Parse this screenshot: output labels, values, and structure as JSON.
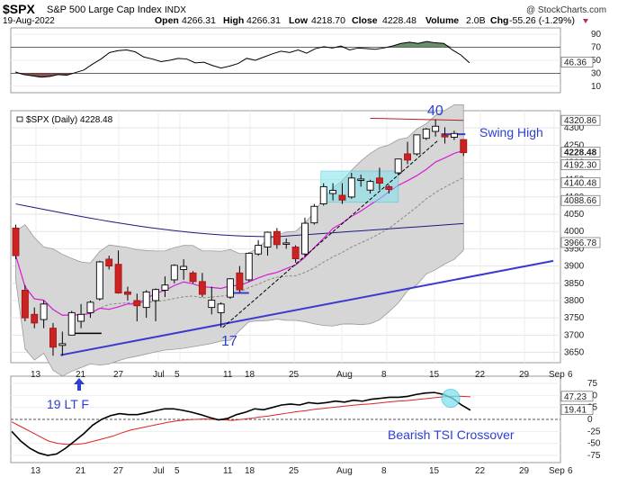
{
  "header": {
    "symbol": "$SPX",
    "name": "S&P 500 Large Cap Index",
    "exchange": "INDX",
    "watermark": "@ StockCharts.com",
    "date": "19-Aug-2022",
    "open_label": "Open",
    "open": "4266.31",
    "high_label": "High",
    "high": "4266.31",
    "low_label": "Low",
    "low": "4218.70",
    "close_label": "Close",
    "close": "4228.48",
    "volume_label": "Volume",
    "volume": "2.0B",
    "chg_label": "Chg",
    "chg": "-55.26 (-1.29%)",
    "legend": "$SPX (Daily) 4228.48"
  },
  "colors": {
    "up_candle": "#ffffff",
    "down_candle": "#cc2222",
    "bollinger_fill": "#d6d6d6",
    "ma_short": "#d81bd8",
    "ma_long": "#1a1a80",
    "upper_envelope": "#b02020",
    "trendline": "#3a3ad0",
    "annotation": "#2b3fd1",
    "rsi_fill_up": "#6a8f6a",
    "rsi_fill_down": "#8a5050",
    "tsi_line": "#000000",
    "tsi_signal": "#dd2222",
    "highlight": "#7fe3ee"
  },
  "annotations": {
    "peak_day": "40",
    "swing_high": "Swing High",
    "low_day": "17",
    "lt_f": "19 LT F",
    "tsi": "Bearish TSI Crossover"
  },
  "chart_data": [
    {
      "type": "line",
      "panel": "RSI",
      "x_tick_labels": [],
      "y_ticks": [
        10,
        30,
        50,
        70,
        90
      ],
      "ylim": [
        0,
        100
      ],
      "value_label": "46.36",
      "values": [
        32,
        28,
        26,
        24,
        25,
        28,
        27,
        31,
        35,
        44,
        52,
        62,
        65,
        66,
        63,
        55,
        52,
        48,
        50,
        53,
        52,
        46,
        47,
        42,
        38,
        41,
        45,
        53,
        50,
        55,
        60,
        64,
        62,
        66,
        61,
        68,
        71,
        69,
        72,
        66,
        69,
        68,
        67,
        69,
        72,
        76,
        78,
        76,
        79,
        77,
        76,
        66,
        58,
        46
      ]
    },
    {
      "type": "candlestick",
      "panel": "Price",
      "title": "$SPX (Daily) 4228.48",
      "x_tick_labels": [
        "13",
        "21",
        "27",
        "Jul",
        "5",
        "11",
        "18",
        "25",
        "Aug",
        "8",
        "15",
        "22",
        "29",
        "Sep",
        "6"
      ],
      "y_ticks": [
        3650,
        3700,
        3750,
        3800,
        3850,
        3900,
        3950,
        4000,
        4050,
        4100,
        4150,
        4200,
        4250,
        4300
      ],
      "ylim": [
        3620,
        4350
      ],
      "price_labels": [
        "4320.86",
        "4228.48",
        "4192.30",
        "4140.48",
        "4088.66",
        "3966.78"
      ],
      "candles": [
        {
          "date": "Jun 10",
          "open": 4010,
          "high": 4020,
          "low": 3920,
          "close": 3930
        },
        {
          "date": "Jun 13",
          "open": 3830,
          "high": 3845,
          "low": 3740,
          "close": 3750
        },
        {
          "date": "Jun 14",
          "open": 3760,
          "high": 3780,
          "low": 3720,
          "close": 3735
        },
        {
          "date": "Jun 15",
          "open": 3745,
          "high": 3800,
          "low": 3720,
          "close": 3790
        },
        {
          "date": "Jun 16",
          "open": 3720,
          "high": 3735,
          "low": 3640,
          "close": 3665
        },
        {
          "date": "Jun 17",
          "open": 3670,
          "high": 3710,
          "low": 3640,
          "close": 3675
        },
        {
          "date": "Jun 21",
          "open": 3700,
          "high": 3770,
          "low": 3700,
          "close": 3765
        },
        {
          "date": "Jun 22",
          "open": 3740,
          "high": 3790,
          "low": 3720,
          "close": 3760
        },
        {
          "date": "Jun 23",
          "open": 3765,
          "high": 3800,
          "low": 3750,
          "close": 3795
        },
        {
          "date": "Jun 24",
          "open": 3805,
          "high": 3915,
          "low": 3800,
          "close": 3912
        },
        {
          "date": "Jun 27",
          "open": 3920,
          "high": 3930,
          "low": 3890,
          "close": 3900
        },
        {
          "date": "Jun 28",
          "open": 3905,
          "high": 3945,
          "low": 3820,
          "close": 3822
        },
        {
          "date": "Jun 29",
          "open": 3825,
          "high": 3840,
          "low": 3800,
          "close": 3818
        },
        {
          "date": "Jun 30",
          "open": 3800,
          "high": 3820,
          "low": 3740,
          "close": 3785
        },
        {
          "date": "Jul 1",
          "open": 3780,
          "high": 3830,
          "low": 3750,
          "close": 3825
        },
        {
          "date": "Jul 5",
          "open": 3800,
          "high": 3835,
          "low": 3740,
          "close": 3832
        },
        {
          "date": "Jul 6",
          "open": 3830,
          "high": 3870,
          "low": 3810,
          "close": 3845
        },
        {
          "date": "Jul 7",
          "open": 3860,
          "high": 3905,
          "low": 3850,
          "close": 3902
        },
        {
          "date": "Jul 8",
          "open": 3890,
          "high": 3920,
          "low": 3860,
          "close": 3899
        },
        {
          "date": "Jul 11",
          "open": 3880,
          "high": 3885,
          "low": 3850,
          "close": 3855
        },
        {
          "date": "Jul 12",
          "open": 3855,
          "high": 3880,
          "low": 3810,
          "close": 3818
        },
        {
          "date": "Jul 13",
          "open": 3780,
          "high": 3840,
          "low": 3760,
          "close": 3801
        },
        {
          "date": "Jul 14",
          "open": 3765,
          "high": 3795,
          "low": 3722,
          "close": 3790
        },
        {
          "date": "Jul 15",
          "open": 3810,
          "high": 3865,
          "low": 3805,
          "close": 3863
        },
        {
          "date": "Jul 18",
          "open": 3880,
          "high": 3900,
          "low": 3825,
          "close": 3831
        },
        {
          "date": "Jul 19",
          "open": 3860,
          "high": 3940,
          "low": 3855,
          "close": 3937
        },
        {
          "date": "Jul 20",
          "open": 3935,
          "high": 3975,
          "low": 3930,
          "close": 3960
        },
        {
          "date": "Jul 21",
          "open": 3955,
          "high": 4000,
          "low": 3930,
          "close": 3998
        },
        {
          "date": "Jul 22",
          "open": 4000,
          "high": 4010,
          "low": 3950,
          "close": 3962
        },
        {
          "date": "Jul 25",
          "open": 3965,
          "high": 3980,
          "low": 3950,
          "close": 3967
        },
        {
          "date": "Jul 26",
          "open": 3955,
          "high": 3960,
          "low": 3910,
          "close": 3921
        },
        {
          "date": "Jul 27",
          "open": 3935,
          "high": 4040,
          "low": 3930,
          "close": 4024
        },
        {
          "date": "Jul 28",
          "open": 4025,
          "high": 4080,
          "low": 4020,
          "close": 4073
        },
        {
          "date": "Jul 29",
          "open": 4080,
          "high": 4140,
          "low": 4075,
          "close": 4130
        },
        {
          "date": "Aug 1",
          "open": 4110,
          "high": 4140,
          "low": 4090,
          "close": 4119
        },
        {
          "date": "Aug 2",
          "open": 4105,
          "high": 4140,
          "low": 4080,
          "close": 4091
        },
        {
          "date": "Aug 3",
          "open": 4100,
          "high": 4170,
          "low": 4095,
          "close": 4155
        },
        {
          "date": "Aug 4",
          "open": 4150,
          "high": 4165,
          "low": 4130,
          "close": 4152
        },
        {
          "date": "Aug 5",
          "open": 4120,
          "high": 4150,
          "low": 4110,
          "close": 4145
        },
        {
          "date": "Aug 8",
          "open": 4155,
          "high": 4185,
          "low": 4120,
          "close": 4140
        },
        {
          "date": "Aug 9",
          "open": 4130,
          "high": 4135,
          "low": 4110,
          "close": 4122
        },
        {
          "date": "Aug 10",
          "open": 4170,
          "high": 4210,
          "low": 4165,
          "close": 4210
        },
        {
          "date": "Aug 11",
          "open": 4225,
          "high": 4260,
          "low": 4195,
          "close": 4207
        },
        {
          "date": "Aug 12",
          "open": 4225,
          "high": 4280,
          "low": 4220,
          "close": 4280
        },
        {
          "date": "Aug 15",
          "open": 4270,
          "high": 4300,
          "low": 4265,
          "close": 4297
        },
        {
          "date": "Aug 16",
          "open": 4290,
          "high": 4325,
          "low": 4275,
          "close": 4305
        },
        {
          "date": "Aug 17",
          "open": 4280,
          "high": 4302,
          "low": 4255,
          "close": 4274
        },
        {
          "date": "Aug 18",
          "open": 4273,
          "high": 4292,
          "low": 4265,
          "close": 4284
        },
        {
          "date": "Aug 19",
          "open": 4266.31,
          "high": 4266.31,
          "low": 4218.7,
          "close": 4228.48
        }
      ]
    },
    {
      "type": "line",
      "panel": "TSI",
      "x_tick_labels": [
        "13",
        "21",
        "27",
        "Jul",
        "5",
        "11",
        "18",
        "25",
        "Aug",
        "8",
        "15",
        "22",
        "29",
        "Sep",
        "6"
      ],
      "y_ticks": [
        75,
        50,
        25,
        0,
        -25,
        -50,
        -75
      ],
      "ylim": [
        -90,
        90
      ],
      "value_labels": [
        "47.23",
        "19.41"
      ],
      "series": [
        {
          "values": [
            -25,
            -45,
            -60,
            -70,
            -75,
            -72,
            -60,
            -45,
            -30,
            -12,
            0,
            8,
            12,
            10,
            10,
            14,
            18,
            22,
            22,
            19,
            15,
            10,
            4,
            -1,
            2,
            10,
            15,
            22,
            20,
            25,
            30,
            32,
            30,
            35,
            33,
            35,
            38,
            36,
            40,
            38,
            42,
            44,
            46,
            46,
            48,
            52,
            55,
            56,
            52,
            44,
            30,
            19
          ]
        },
        {
          "values": [
            -5,
            -15,
            -25,
            -35,
            -45,
            -50,
            -52,
            -52,
            -50,
            -45,
            -40,
            -35,
            -28,
            -22,
            -18,
            -14,
            -10,
            -6,
            -3,
            -1,
            0,
            1,
            0,
            -1,
            -2,
            0,
            2,
            5,
            7,
            10,
            13,
            16,
            18,
            21,
            23,
            25,
            27,
            29,
            31,
            32,
            34,
            36,
            38,
            39,
            41,
            43,
            45,
            47,
            48,
            48,
            47
          ]
        }
      ]
    }
  ]
}
